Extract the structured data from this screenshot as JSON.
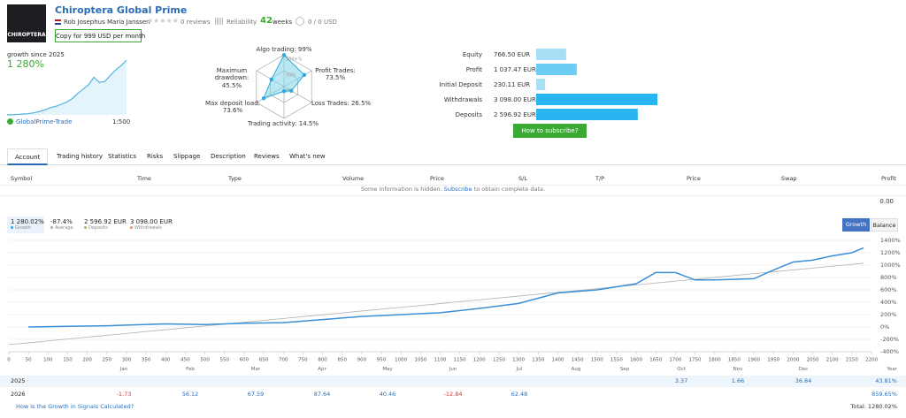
{
  "header": {
    "logo_text": "CHIROPTERA",
    "title": "Chiroptera Global Prime",
    "author": "Rob Josephus Maria Janssen",
    "reviews": "0 reviews",
    "reliability": "Reliability",
    "weeks_value": 42,
    "weeks_label": "weeks",
    "subscribers": "0 / 0 USD",
    "copy_button": "Copy for 999 USD per month"
  },
  "summary": {
    "growth_label": "growth since 2025",
    "growth_value": "1 280%",
    "broker": "GlobalPrime-Trade",
    "leverage": "1:500",
    "sparkline": {
      "type": "line",
      "color": "#4fb3e6",
      "values": [
        0,
        5,
        10,
        20,
        30,
        50,
        80,
        120,
        170,
        200,
        250,
        300,
        380,
        500,
        600,
        700,
        880,
        760,
        780,
        920,
        1050,
        1150,
        1280
      ]
    }
  },
  "radar": {
    "type": "radar",
    "color": "#2aa8e0",
    "rlim": [
      0,
      100
    ],
    "rticks": [
      {
        "value": 100,
        "label": "100+%"
      },
      {
        "value": 50,
        "label": "50%"
      },
      {
        "value": 0,
        "label": "0%"
      }
    ],
    "axes": [
      {
        "label": "Algo trading: 99%",
        "value": 99
      },
      {
        "label": "Profit Trades: 73.5%",
        "value": 73.5
      },
      {
        "label": "Loss Trades: 26.5%",
        "value": 26.5
      },
      {
        "label": "Trading activity: 14.5%",
        "value": 14.5
      },
      {
        "label": "Max deposit load: 73.6%",
        "value": 73.6
      },
      {
        "label": "Maximum drawdown: 45.5%",
        "value": 45.5
      }
    ]
  },
  "balance_bars": {
    "type": "bar",
    "orientation": "horizontal",
    "categories": [
      "Equity",
      "Profit",
      "Initial Deposit",
      "Withdrawals",
      "Deposits"
    ],
    "values": [
      766.5,
      1037.47,
      230.11,
      3098,
      2596.92
    ],
    "value_labels": [
      "766.50 EUR",
      "1 037.47 EUR",
      "230.11 EUR",
      "3 098.00 EUR",
      "2 596.92 EUR"
    ],
    "colors": [
      "#a9def7",
      "#6ccdf3",
      "#a9def7",
      "#29b6f0",
      "#29b6f0"
    ]
  },
  "subscribe_button": "How to subscribe?",
  "tabs": [
    "Account",
    "Trading history",
    "Statistics",
    "Risks",
    "Slippage",
    "Description",
    "Reviews",
    "What's new"
  ],
  "active_tab": 0,
  "trades_table": {
    "columns": [
      "Symbol",
      "Time",
      "Type",
      "Volume",
      "Price",
      "S/L",
      "T/P",
      "Price",
      "Swap",
      "Profit"
    ],
    "notice_prefix": "Some information is hidden.",
    "notice_link": "Subscribe",
    "notice_suffix": "to obtain complete data.",
    "total_profit": "0.00"
  },
  "growth_stats": [
    {
      "value": "1 280.02%",
      "label": "Growth",
      "color": "#2aa8e0"
    },
    {
      "value": "-87.4%",
      "label": "Average",
      "color": "#aaaaaa"
    },
    {
      "value": "2 596.92 EUR",
      "label": "Deposits",
      "color": "#8bc34a"
    },
    {
      "value": "3 098.00 EUR",
      "label": "Withdrawals",
      "color": "#f28b50"
    }
  ],
  "chart_toggle": [
    "Growth",
    "Balance"
  ],
  "chart_data": {
    "type": "line",
    "x": [
      0,
      50,
      150,
      250,
      400,
      500,
      600,
      700,
      800,
      900,
      1000,
      1100,
      1200,
      1300,
      1400,
      1500,
      1600,
      1650,
      1700,
      1750,
      1800,
      1900,
      1950,
      2000,
      2050,
      2100,
      2150,
      2180
    ],
    "series": [
      {
        "color": "#3a8fd9",
        "values": [
          null,
          0,
          10,
          20,
          50,
          40,
          60,
          70,
          120,
          170,
          200,
          230,
          300,
          380,
          550,
          600,
          700,
          880,
          880,
          760,
          760,
          780,
          920,
          1050,
          1080,
          1150,
          1200,
          1280
        ]
      },
      {
        "color": "#b0b0b0",
        "values": [
          -286,
          -256,
          -195,
          -135,
          -44,
          16,
          76,
          137,
          197,
          258,
          318,
          378,
          439,
          499,
          560,
          620,
          680,
          711,
          741,
          771,
          801,
          862,
          892,
          922,
          952,
          982,
          1013,
          1031
        ]
      }
    ],
    "xlim": [
      0,
      2200
    ],
    "ylim": [
      -400,
      1400
    ],
    "xticks": [
      0,
      50,
      100,
      150,
      200,
      250,
      300,
      350,
      400,
      450,
      500,
      550,
      600,
      650,
      700,
      750,
      800,
      850,
      900,
      950,
      1000,
      1050,
      1100,
      1150,
      1200,
      1250,
      1300,
      1350,
      1400,
      1450,
      1500,
      1550,
      1600,
      1650,
      1700,
      1750,
      1800,
      1850,
      1900,
      1950,
      2000,
      2050,
      2100,
      2150,
      2200
    ],
    "yticks": [
      {
        "value": -400,
        "label": "-400%"
      },
      {
        "value": -200,
        "label": "-200%"
      },
      {
        "value": 0,
        "label": "0%"
      },
      {
        "value": 200,
        "label": "200%"
      },
      {
        "value": 400,
        "label": "400%"
      },
      {
        "value": 600,
        "label": "600%"
      },
      {
        "value": 800,
        "label": "800%"
      },
      {
        "value": 1000,
        "label": "1000%"
      },
      {
        "value": 1200,
        "label": "1200%"
      },
      {
        "value": 1400,
        "label": "1400%"
      }
    ],
    "grid": true
  },
  "monthly_returns": {
    "months": [
      "Jan",
      "Feb",
      "Mar",
      "Apr",
      "May",
      "Jun",
      "Jul",
      "Aug",
      "Sep",
      "Oct",
      "Nov",
      "Dec"
    ],
    "year_label": "Year",
    "rows": [
      {
        "year": "2025",
        "values": [
          null,
          null,
          null,
          null,
          null,
          null,
          null,
          null,
          null,
          3.37,
          1.66,
          36.84
        ],
        "total": "43.81%"
      },
      {
        "year": "2026",
        "values": [
          -1.73,
          56.12,
          67.59,
          87.64,
          40.46,
          -12.84,
          62.48,
          null,
          null,
          null,
          null,
          null
        ],
        "total": "859.65%"
      }
    ]
  },
  "footer": {
    "help_link": "How is the Growth in Signals Calculated?",
    "total": "Total: 1280.02%"
  }
}
